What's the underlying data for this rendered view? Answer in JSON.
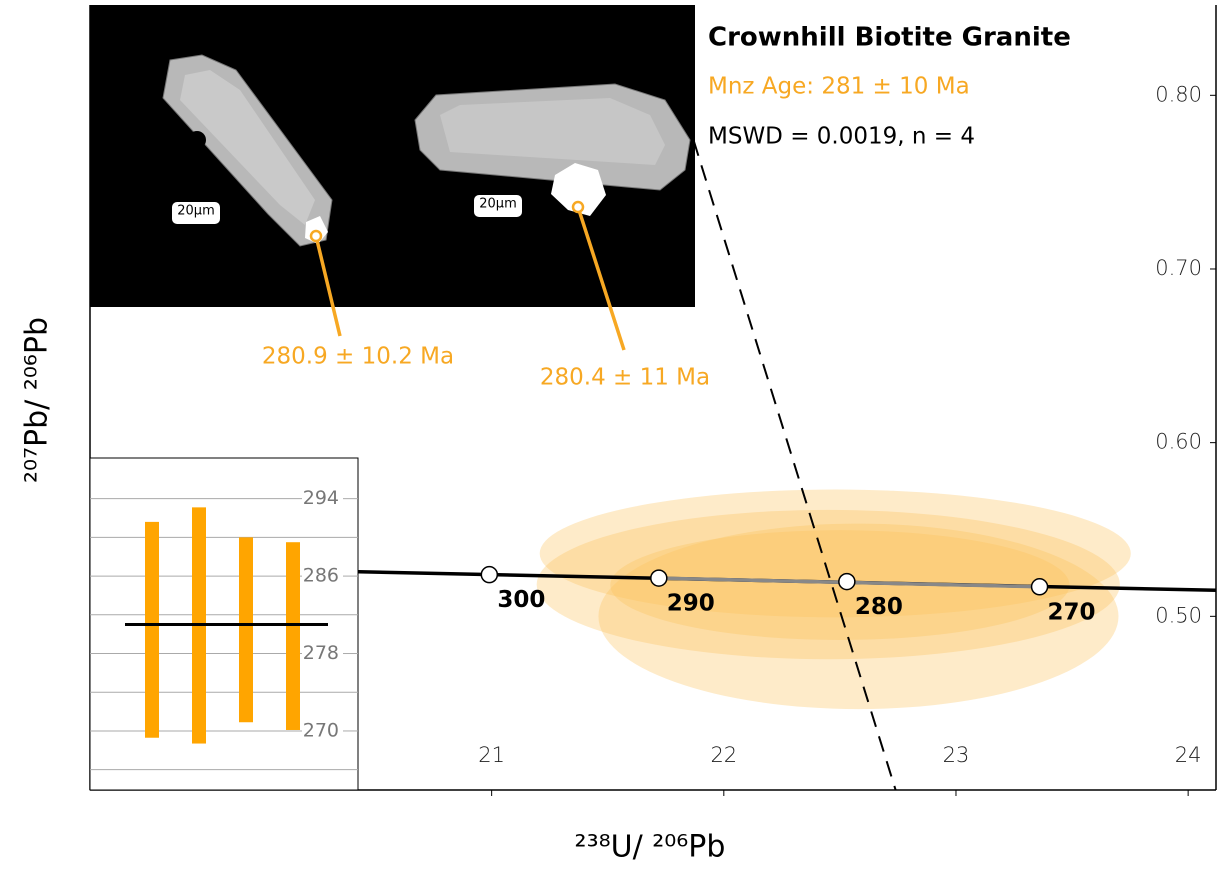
{
  "chart_data": [
    {
      "type": "concordia",
      "title": "Crownhill Biotite Granite",
      "subtitle": "Mnz Age: 281 ± 10 Ma",
      "annotation": "MSWD = 0.0019, n = 4",
      "x_label": "²³⁸U/ ²⁰⁶Pb",
      "y_label": "²⁰⁷Pb/ ²⁰⁶Pb",
      "xlim": [
        19.27,
        24.12
      ],
      "ylim": [
        0.4,
        0.852
      ],
      "xticks": [
        21,
        22,
        23,
        24
      ],
      "yticks": [
        {
          "value": 0.5,
          "label": "0.50"
        },
        {
          "value": 0.6,
          "label": "0.60"
        },
        {
          "value": 0.7,
          "label": "0.70"
        },
        {
          "value": 0.8,
          "label": "0.80"
        }
      ],
      "concordia": {
        "x": [
          19.27,
          24.12
        ],
        "y": [
          0.529,
          0.515
        ],
        "color": "#000000"
      },
      "ages": {
        "values": [
          300,
          290,
          280,
          270
        ],
        "x": [
          20.99,
          21.72,
          22.53,
          23.36
        ],
        "y": [
          0.524,
          0.522,
          0.52,
          0.517
        ]
      },
      "ellipses": {
        "x": [
          22.48,
          22.58,
          22.45,
          22.5
        ],
        "y": [
          0.5362,
          0.5,
          0.5183,
          0.518
        ],
        "rx": [
          1.273,
          1.12,
          1.256,
          0.989
        ],
        "ry": [
          0.0368,
          0.0534,
          0.043,
          0.0316
        ],
        "color": "#fbc15b"
      },
      "discordia": {
        "x": [
          21.87,
          22.74
        ],
        "y": [
          0.774,
          0.4
        ]
      },
      "spot_labels": [
        "280.9 ± 10.2 Ma",
        "280.4 ± 11 Ma"
      ],
      "scale_labels": [
        "20µm",
        "20µm"
      ],
      "accent_color": "#f7a823"
    },
    {
      "type": "range_bar",
      "lows": [
        269.3,
        268.7,
        270.9,
        270.1
      ],
      "highs": [
        291.6,
        293.1,
        290.0,
        289.5
      ],
      "mean": 281,
      "color": "#ffa500",
      "ylim": [
        263.9,
        298.2
      ],
      "yticks": [
        270,
        278,
        286,
        294
      ],
      "minor_yticks": [
        266,
        274,
        282,
        290
      ],
      "grid": true
    }
  ]
}
